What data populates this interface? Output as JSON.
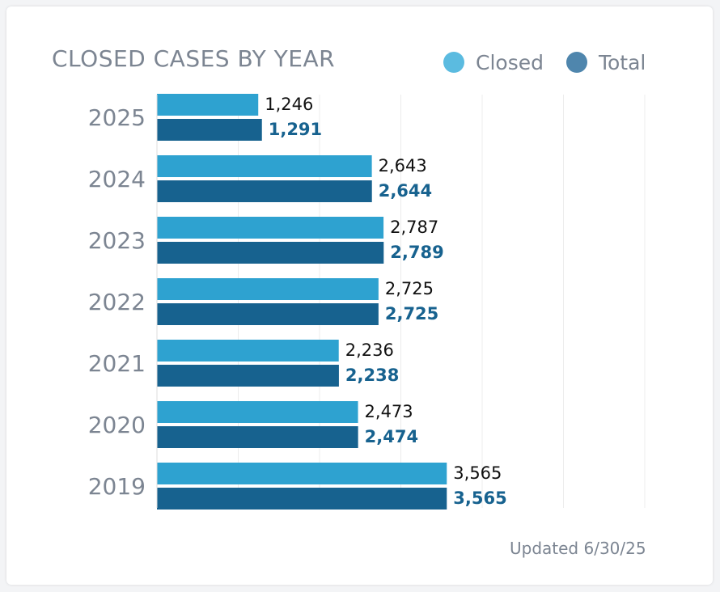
{
  "title": "CLOSED CASES BY YEAR",
  "legend": [
    {
      "label": "Closed",
      "color": "#5bbbe0"
    },
    {
      "label": "Total",
      "color": "#4f86ad"
    }
  ],
  "footer": "Updated 6/30/25",
  "chart_data": {
    "type": "bar",
    "orientation": "horizontal",
    "title": "CLOSED CASES BY YEAR",
    "categories": [
      "2025",
      "2024",
      "2023",
      "2022",
      "2021",
      "2020",
      "2019"
    ],
    "series": [
      {
        "name": "Closed",
        "color": "#2ea2d0",
        "values": [
          1246,
          2643,
          2787,
          2725,
          2236,
          2473,
          3565
        ],
        "labels": [
          "1,246",
          "2,643",
          "2,787",
          "2,725",
          "2,236",
          "2,473",
          "3,565"
        ]
      },
      {
        "name": "Total",
        "color": "#17628f",
        "values": [
          1291,
          2644,
          2789,
          2725,
          2238,
          2474,
          3565
        ],
        "labels": [
          "1,291",
          "2,644",
          "2,789",
          "2,725",
          "2,238",
          "2,474",
          "3,565"
        ]
      }
    ],
    "xlim": [
      0,
      6000
    ],
    "grid": true,
    "legend_position": "top-right",
    "xlabel": "",
    "ylabel": ""
  }
}
